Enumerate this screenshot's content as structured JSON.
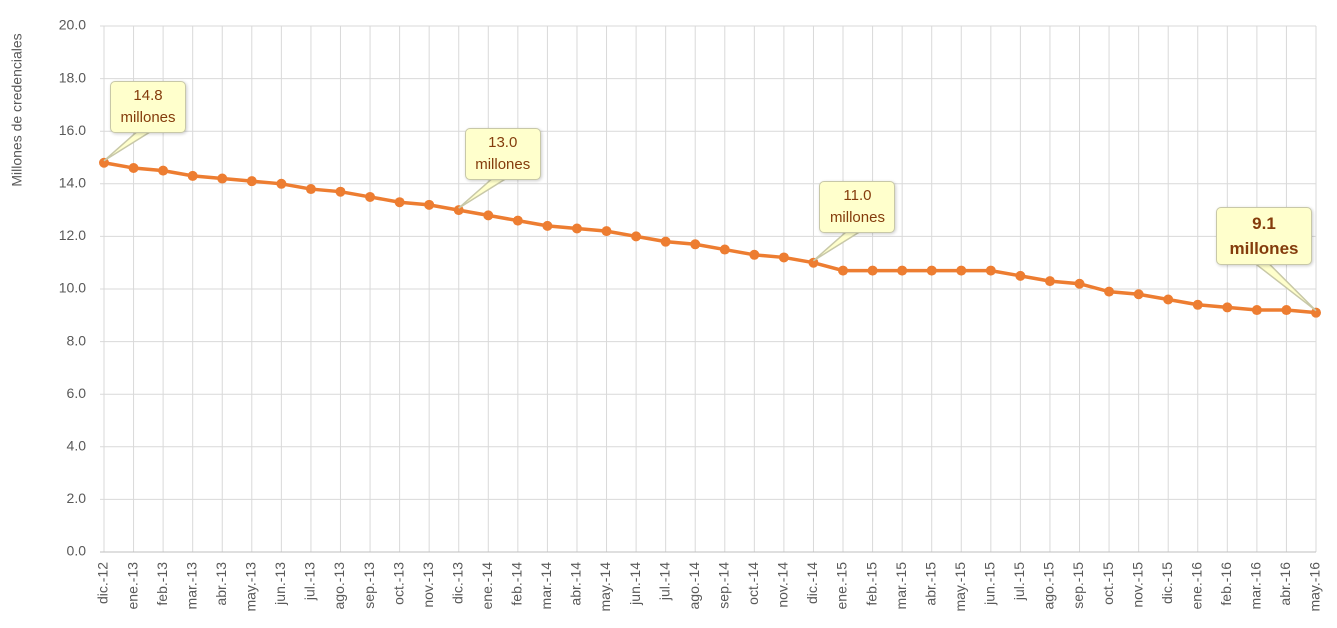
{
  "chart_data": {
    "type": "line",
    "y_label": "Millones de credenciales",
    "categories": [
      "dic.-12",
      "ene.-13",
      "feb.-13",
      "mar.-13",
      "abr.-13",
      "may.-13",
      "jun.-13",
      "jul.-13",
      "ago.-13",
      "sep.-13",
      "oct.-13",
      "nov.-13",
      "dic.-13",
      "ene.-14",
      "feb.-14",
      "mar.-14",
      "abr.-14",
      "may.-14",
      "jun.-14",
      "jul.-14",
      "ago.-14",
      "sep.-14",
      "oct.-14",
      "nov.-14",
      "dic.-14",
      "ene.-15",
      "feb.-15",
      "mar.-15",
      "abr.-15",
      "may.-15",
      "jun.-15",
      "jul.-15",
      "ago.-15",
      "sep.-15",
      "oct.-15",
      "nov.-15",
      "dic.-15",
      "ene.-16",
      "feb.-16",
      "mar.-16",
      "abr.-16",
      "may.-16"
    ],
    "values": [
      14.8,
      14.6,
      14.5,
      14.3,
      14.2,
      14.1,
      14.0,
      13.8,
      13.7,
      13.5,
      13.3,
      13.2,
      13.0,
      12.8,
      12.6,
      12.4,
      12.3,
      12.2,
      12.0,
      11.8,
      11.7,
      11.5,
      11.3,
      11.2,
      11.0,
      10.7,
      10.7,
      10.7,
      10.7,
      10.7,
      10.7,
      10.5,
      10.3,
      10.2,
      9.9,
      9.8,
      9.6,
      9.4,
      9.3,
      9.2,
      9.2,
      9.1
    ],
    "value_labels": [
      "14.8 millones",
      null,
      null,
      null,
      null,
      null,
      null,
      null,
      null,
      null,
      null,
      null,
      "13.0 millones",
      null,
      null,
      null,
      null,
      null,
      null,
      null,
      null,
      null,
      null,
      null,
      "11.0 millones",
      null,
      null,
      null,
      null,
      null,
      null,
      null,
      null,
      null,
      null,
      null,
      null,
      null,
      null,
      null,
      null,
      "9.1 millones"
    ],
    "color": "#ed7d31",
    "ylim": [
      0,
      20
    ],
    "yticks": [
      {
        "value": 0,
        "label": "0.0"
      },
      {
        "value": 2,
        "label": "2.0"
      },
      {
        "value": 4,
        "label": "4.0"
      },
      {
        "value": 6,
        "label": "6.0"
      },
      {
        "value": 8,
        "label": "8.0"
      },
      {
        "value": 10,
        "label": "10.0"
      },
      {
        "value": 12,
        "label": "12.0"
      },
      {
        "value": 14,
        "label": "14.0"
      },
      {
        "value": 16,
        "label": "16.0"
      },
      {
        "value": 18,
        "label": "18.0"
      },
      {
        "value": 20,
        "label": "20.0"
      }
    ],
    "grid": true
  }
}
